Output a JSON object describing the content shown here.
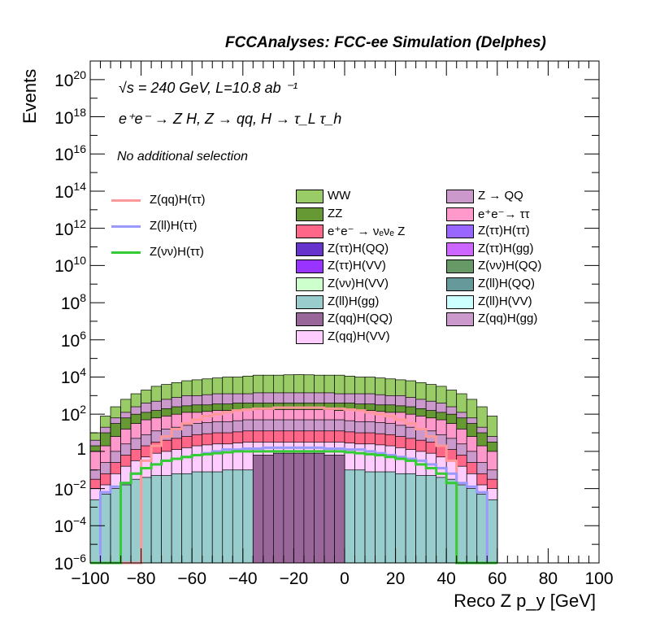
{
  "title": "FCCAnalyses: FCC-ee Simulation (Delphes)",
  "annotations": {
    "energy": "√s = 240 GeV, L=10.8 ab ⁻¹",
    "process": "e⁺e⁻ → Z H, Z → qq, H → τ_L τ_h",
    "selection": "No additional selection"
  },
  "chart_data": {
    "type": "bar",
    "stacked": true,
    "log_y": true,
    "xlabel": "Reco Z p_y [GeV]",
    "ylabel": "Events",
    "xlim": [
      -100,
      100
    ],
    "ylim": [
      1e-06,
      1e+21
    ],
    "x_ticks": [
      "−100",
      "−80",
      "−60",
      "−40",
      "−20",
      "0",
      "20",
      "40",
      "60",
      "80",
      "100"
    ],
    "y_ticks": [
      {
        "base": "10",
        "exp": "−6",
        "value": 1e-06
      },
      {
        "base": "10",
        "exp": "−4",
        "value": 0.0001
      },
      {
        "base": "10",
        "exp": "−2",
        "value": 0.01
      },
      {
        "base": "1",
        "exp": "",
        "value": 1
      },
      {
        "base": "10",
        "exp": "2",
        "value": 100.0
      },
      {
        "base": "10",
        "exp": "4",
        "value": 10000.0
      },
      {
        "base": "10",
        "exp": "6",
        "value": 1000000.0
      },
      {
        "base": "10",
        "exp": "8",
        "value": 100000000.0
      },
      {
        "base": "10",
        "exp": "10",
        "value": 10000000000.0
      },
      {
        "base": "10",
        "exp": "12",
        "value": 1000000000000.0
      },
      {
        "base": "10",
        "exp": "14",
        "value": 100000000000000.0
      },
      {
        "base": "10",
        "exp": "16",
        "value": 1e+16
      },
      {
        "base": "10",
        "exp": "18",
        "value": 1e+18
      },
      {
        "base": "10",
        "exp": "20",
        "value": 1e+20
      }
    ],
    "bin_edges_start": -100,
    "bin_width": 4,
    "stack_totals_log10": [
      1.0,
      1.9,
      2.4,
      2.8,
      3.1,
      3.3,
      3.5,
      3.6,
      3.7,
      3.8,
      3.85,
      3.9,
      3.95,
      4.0,
      4.0,
      4.05,
      4.1,
      4.1,
      4.1,
      4.12,
      4.13,
      4.12,
      4.1,
      4.1,
      4.1,
      4.05,
      4.0,
      4.0,
      3.95,
      3.9,
      3.85,
      3.8,
      3.7,
      3.6,
      3.5,
      3.3,
      3.1,
      2.8,
      2.4,
      1.9
    ],
    "stack_layers": [
      {
        "name": "WW",
        "color": "#99cc66",
        "top_log10": [
          1.0,
          1.9,
          2.4,
          2.8,
          3.1,
          3.3,
          3.5,
          3.6,
          3.7,
          3.8,
          3.85,
          3.9,
          3.95,
          4.0,
          4.0,
          4.05,
          4.1,
          4.1,
          4.1,
          4.12,
          4.13,
          4.12,
          4.1,
          4.1,
          4.1,
          4.05,
          4.0,
          4.0,
          3.95,
          3.9,
          3.85,
          3.8,
          3.7,
          3.6,
          3.5,
          3.3,
          3.1,
          2.8,
          2.4,
          1.9
        ]
      },
      {
        "name": "Z → QQ",
        "color": "#cc99cc",
        "top_log10": [
          0.6,
          1.3,
          1.8,
          2.1,
          2.4,
          2.6,
          2.7,
          2.8,
          2.9,
          3.0,
          3.0,
          3.05,
          3.1,
          3.1,
          3.1,
          3.1,
          3.15,
          3.15,
          3.15,
          3.15,
          3.15,
          3.15,
          3.15,
          3.15,
          3.1,
          3.1,
          3.1,
          3.1,
          3.05,
          3.0,
          3.0,
          2.9,
          2.8,
          2.7,
          2.6,
          2.4,
          2.1,
          1.8,
          1.3,
          0.8
        ]
      },
      {
        "name": "ZZ",
        "color": "#669933",
        "top_log10": [
          0.3,
          1.0,
          1.5,
          1.8,
          2.0,
          2.1,
          2.2,
          2.3,
          2.4,
          2.45,
          2.5,
          2.5,
          2.55,
          2.55,
          2.6,
          2.6,
          2.6,
          2.6,
          2.6,
          2.6,
          2.6,
          2.6,
          2.6,
          2.6,
          2.6,
          2.6,
          2.55,
          2.55,
          2.5,
          2.5,
          2.45,
          2.4,
          2.3,
          2.2,
          2.1,
          2.0,
          1.8,
          1.5,
          1.0,
          0.5
        ]
      },
      {
        "name": "e⁺e⁻ → ττ",
        "color": "#ff99cc",
        "top_log10": [
          0.0,
          0.3,
          0.8,
          1.2,
          1.5,
          1.7,
          1.8,
          1.9,
          2.0,
          2.1,
          2.1,
          2.15,
          2.2,
          2.2,
          2.2,
          2.2,
          2.25,
          2.25,
          2.25,
          2.25,
          2.25,
          2.25,
          2.25,
          2.25,
          2.2,
          2.2,
          2.2,
          2.2,
          2.15,
          2.1,
          2.1,
          2.0,
          1.9,
          1.8,
          1.7,
          1.5,
          1.2,
          0.8,
          0.3,
          0.0
        ]
      },
      {
        "name": "Z(qq)H(gg)",
        "color": "#cc99cc",
        "top_log10": [
          -1.0,
          -0.6,
          0.0,
          0.4,
          0.7,
          0.9,
          1.1,
          1.2,
          1.3,
          1.4,
          1.5,
          1.55,
          1.6,
          1.6,
          1.65,
          1.7,
          1.7,
          1.7,
          1.7,
          1.7,
          1.7,
          1.7,
          1.7,
          1.7,
          1.7,
          1.65,
          1.6,
          1.6,
          1.55,
          1.5,
          1.4,
          1.3,
          1.2,
          1.1,
          0.9,
          0.7,
          0.4,
          0.0,
          -0.6,
          -1.0
        ]
      },
      {
        "name": "e⁺e⁻ → ν_e ν_e Z",
        "color": "#ff6688",
        "top_log10": [
          -1.5,
          -1.2,
          -0.6,
          -0.2,
          0.1,
          0.3,
          0.5,
          0.6,
          0.7,
          0.8,
          0.9,
          0.95,
          1.0,
          1.0,
          1.05,
          1.1,
          1.1,
          1.1,
          1.1,
          1.1,
          1.1,
          1.1,
          1.1,
          1.1,
          1.1,
          1.05,
          1.0,
          1.0,
          0.95,
          0.9,
          0.8,
          0.7,
          0.6,
          0.5,
          0.3,
          0.1,
          -0.2,
          -0.6,
          -1.2,
          -1.5
        ]
      },
      {
        "name": "Z(qq)H(VV)",
        "color": "#ffccff",
        "top_log10": [
          -2.0,
          -1.8,
          -1.2,
          -0.8,
          -0.5,
          -0.3,
          -0.1,
          0.0,
          0.1,
          0.2,
          0.3,
          0.35,
          0.4,
          0.4,
          0.45,
          0.5,
          0.5,
          0.5,
          0.5,
          0.5,
          0.5,
          0.5,
          0.5,
          0.5,
          0.5,
          0.45,
          0.4,
          0.4,
          0.35,
          0.3,
          0.2,
          0.1,
          0.0,
          -0.1,
          -0.3,
          -0.5,
          -0.8,
          -1.2,
          -1.8,
          -2.0
        ]
      },
      {
        "name": "Z(ll)H(gg)",
        "color": "#99cccc",
        "top_log10": [
          -2.6,
          -2.3,
          -2.0,
          -1.8,
          -1.5,
          -1.4,
          -1.3,
          -1.3,
          -1.2,
          -1.2,
          -1.1,
          -1.1,
          -1.1,
          -1.0,
          -1.0,
          -1.0,
          -1.0,
          -1.0,
          -1.0,
          -1.0,
          -1.0,
          -1.0,
          -1.0,
          -1.0,
          -1.0,
          -1.0,
          -1.0,
          -1.1,
          -1.1,
          -1.1,
          -1.2,
          -1.2,
          -1.3,
          -1.3,
          -1.4,
          -1.5,
          -1.8,
          -2.0,
          -2.3,
          -2.6
        ]
      },
      {
        "name": "Z(qq)H(QQ)",
        "color": "#996699",
        "top_log10": [
          -9,
          -9,
          -9,
          -9,
          -9,
          -9,
          -9,
          -9,
          -9,
          -9,
          -9,
          -9,
          -9,
          -9,
          -9,
          -9,
          -0.2,
          -0.2,
          -0.1,
          -0.1,
          -0.1,
          -0.1,
          -0.1,
          -0.2,
          -0.2,
          -9,
          -9,
          -9,
          -9,
          -9,
          -9,
          -9,
          -9,
          -9,
          -9,
          -9,
          -9,
          -9,
          -9,
          -9
        ]
      }
    ],
    "overlay_lines": [
      {
        "name": "Z(qq)H(ττ)",
        "color": "#ff9999",
        "values_log10": [
          -9,
          -9,
          -9,
          -9,
          -9,
          -0.5,
          0.3,
          0.8,
          1.2,
          1.5,
          1.7,
          1.9,
          2.0,
          2.1,
          2.2,
          2.25,
          2.3,
          2.3,
          2.35,
          2.35,
          2.35,
          2.35,
          2.35,
          2.3,
          2.3,
          2.25,
          2.2,
          2.1,
          2.0,
          1.9,
          1.7,
          1.5,
          1.2,
          0.8,
          0.3,
          -0.5,
          -9,
          -9,
          -9,
          -9
        ]
      },
      {
        "name": "Z(ll)H(ττ)",
        "color": "#9999ff",
        "values_log10": [
          -9,
          -2.2,
          -1.9,
          -1.7,
          -1.2,
          -0.9,
          -0.7,
          -0.5,
          -0.4,
          -0.3,
          -0.2,
          -0.1,
          0.0,
          0.1,
          0.1,
          0.15,
          0.15,
          0.2,
          0.2,
          0.2,
          0.2,
          0.2,
          0.2,
          0.15,
          0.15,
          0.1,
          0.1,
          0.0,
          -0.1,
          -0.2,
          -0.3,
          -0.4,
          -0.5,
          -0.7,
          -0.9,
          -1.2,
          -1.7,
          -1.9,
          -2.2,
          -9
        ]
      },
      {
        "name": "Z(νν)H(ττ)",
        "color": "#33cc33",
        "values_log10": [
          -9,
          -9,
          -9,
          -1.7,
          -1.2,
          -0.9,
          -0.7,
          -0.5,
          -0.4,
          -0.3,
          -0.2,
          -0.15,
          -0.1,
          -0.05,
          0.0,
          0.0,
          0.0,
          0.0,
          0.0,
          0.0,
          0.0,
          0.0,
          0.0,
          0.0,
          0.0,
          -0.05,
          -0.1,
          -0.15,
          -0.2,
          -0.3,
          -0.4,
          -0.5,
          -0.7,
          -0.9,
          -1.2,
          -1.7,
          -9,
          -9,
          -9,
          -9
        ]
      }
    ],
    "legend": {
      "lines": [
        "Z(qq)H(ττ)",
        "Z(ll)H(ττ)",
        "Z(νν)H(ττ)"
      ],
      "col1": [
        {
          "label": "WW",
          "color": "#99cc66"
        },
        {
          "label": "ZZ",
          "color": "#669933"
        },
        {
          "label": "e⁺e⁻ → νₑνₑ Z",
          "color": "#ff6688"
        },
        {
          "label": "Z(ττ)H(QQ)",
          "color": "#6633cc"
        },
        {
          "label": "Z(ττ)H(VV)",
          "color": "#9933ff"
        },
        {
          "label": "Z(νν)H(VV)",
          "color": "#ccffcc"
        },
        {
          "label": "Z(ll)H(gg)",
          "color": "#99cccc"
        },
        {
          "label": "Z(qq)H(QQ)",
          "color": "#996699"
        },
        {
          "label": "Z(qq)H(VV)",
          "color": "#ffccff"
        }
      ],
      "col2": [
        {
          "label": "Z → QQ",
          "color": "#cc99cc"
        },
        {
          "label": "e⁺e⁻→ ττ",
          "color": "#ff99cc"
        },
        {
          "label": "Z(ττ)H(ττ)",
          "color": "#9966ff"
        },
        {
          "label": "Z(ττ)H(gg)",
          "color": "#cc66ff"
        },
        {
          "label": "Z(νν)H(QQ)",
          "color": "#669966"
        },
        {
          "label": "Z(ll)H(QQ)",
          "color": "#669999"
        },
        {
          "label": "Z(ll)H(VV)",
          "color": "#ccffff"
        },
        {
          "label": "Z(qq)H(gg)",
          "color": "#cc99cc"
        }
      ]
    }
  }
}
